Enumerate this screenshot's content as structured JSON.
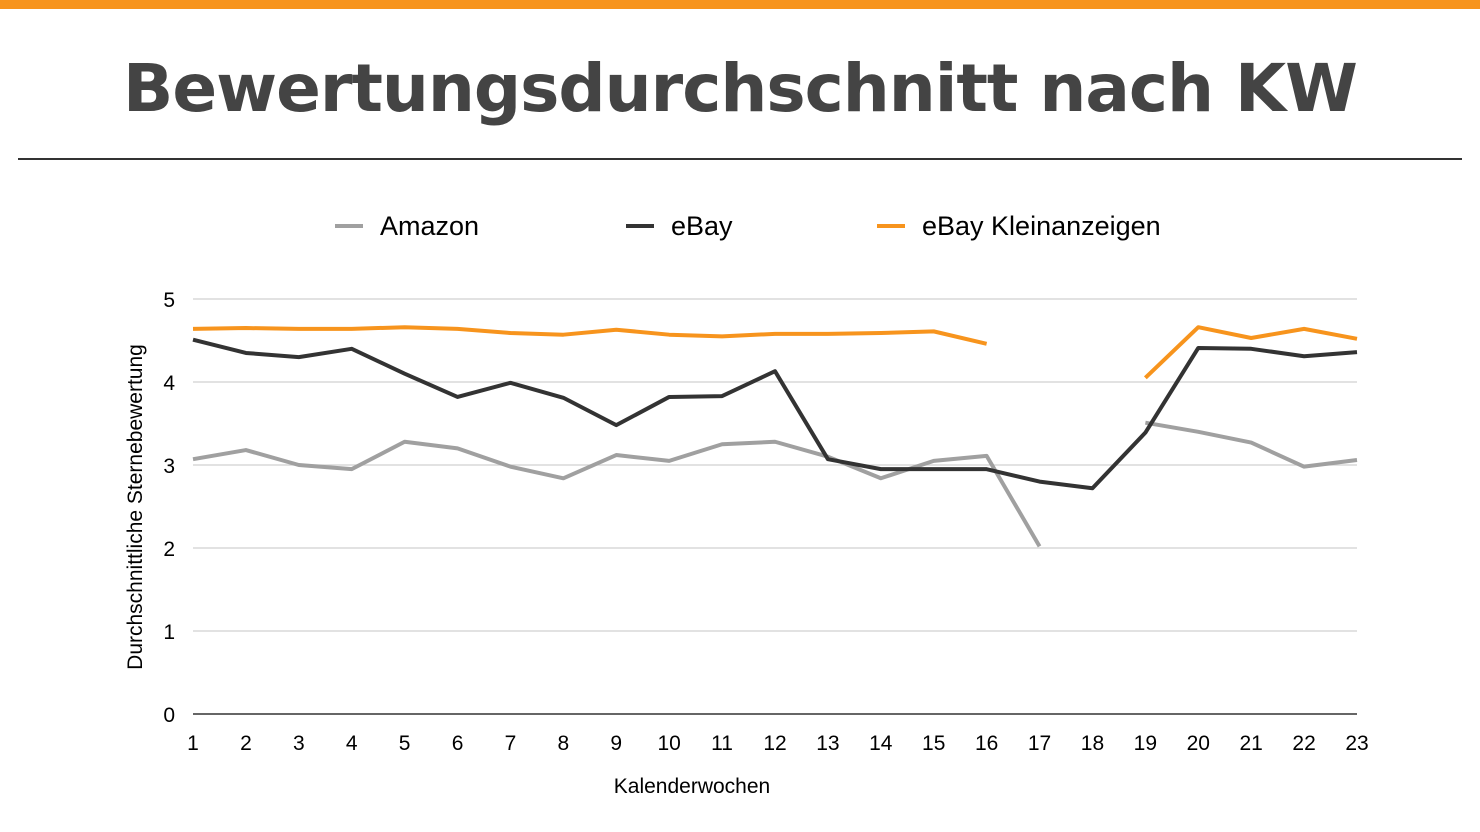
{
  "title": "Bewertungsdurchschnitt nach KW",
  "chart_data": {
    "type": "line",
    "title": "Bewertungsdurchschnitt nach KW",
    "xlabel": "Kalenderwochen",
    "ylabel": "Durchschnittliche Sternebewertung",
    "x": [
      1,
      2,
      3,
      4,
      5,
      6,
      7,
      8,
      9,
      10,
      11,
      12,
      13,
      14,
      15,
      16,
      17,
      18,
      19,
      20,
      21,
      22,
      23
    ],
    "ylim": [
      0,
      5
    ],
    "yticks": [
      0,
      1,
      2,
      3,
      4,
      5
    ],
    "grid": true,
    "legend_position": "top",
    "series": [
      {
        "name": "Amazon",
        "color": "#a0a0a0",
        "values": [
          3.07,
          3.18,
          3.0,
          2.95,
          3.28,
          3.2,
          2.98,
          2.84,
          3.12,
          3.05,
          3.25,
          3.28,
          3.1,
          2.84,
          3.05,
          3.11,
          2.02,
          null,
          3.51,
          3.4,
          3.27,
          2.98,
          3.06
        ]
      },
      {
        "name": "eBay",
        "color": "#333333",
        "values": [
          4.51,
          4.35,
          4.3,
          4.4,
          4.1,
          3.82,
          3.99,
          3.81,
          3.48,
          3.82,
          3.83,
          4.13,
          3.07,
          2.95,
          2.95,
          2.95,
          2.8,
          2.72,
          3.39,
          4.41,
          4.4,
          4.31,
          4.36
        ]
      },
      {
        "name": "eBay Kleinanzeigen",
        "color": "#f7941d",
        "values": [
          4.64,
          4.65,
          4.64,
          4.64,
          4.66,
          4.64,
          4.59,
          4.57,
          4.63,
          4.57,
          4.55,
          4.58,
          4.58,
          4.59,
          4.61,
          4.46,
          null,
          null,
          4.05,
          4.66,
          4.53,
          4.64,
          4.52
        ]
      }
    ]
  }
}
